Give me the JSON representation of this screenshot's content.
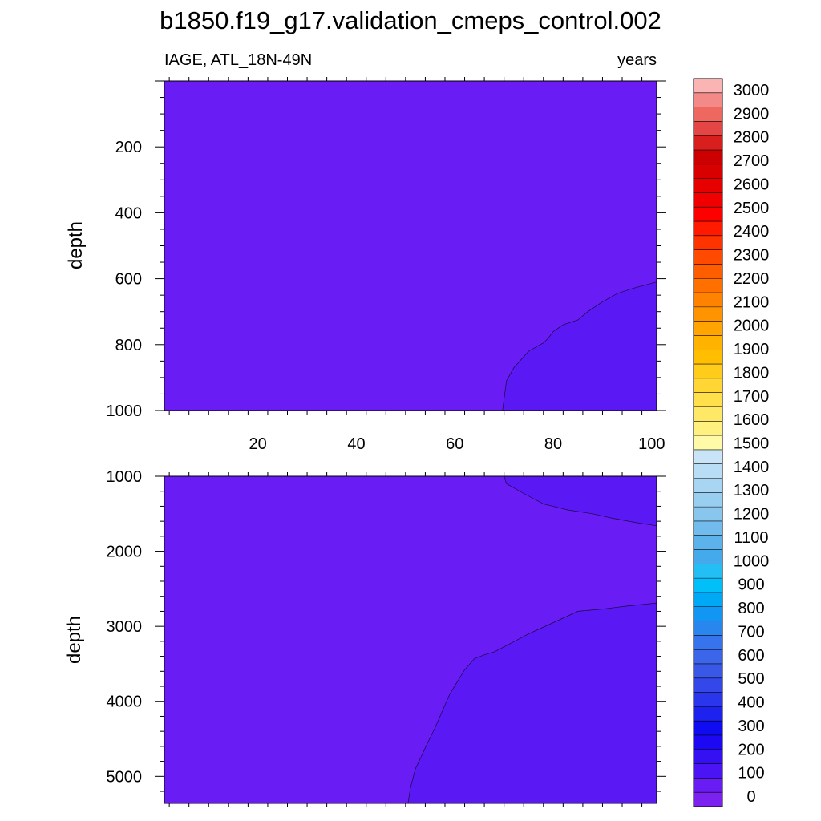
{
  "chart_data": {
    "type": "heatmap",
    "title": "b1850.f19_g17.validation_cmeps_control.002",
    "variable_label": "IAGE, ATL_18N-49N",
    "units_label": "years",
    "panels": [
      {
        "name": "upper",
        "ylabel": "depth",
        "xlim": [
          1,
          101
        ],
        "ylim": [
          0,
          1000
        ],
        "y_reversed": true,
        "x_ticks": [
          20,
          40,
          60,
          80,
          100
        ],
        "x_tick_labels": [
          "20",
          "40",
          "60",
          "80",
          "100"
        ],
        "y_ticks": [
          200,
          400,
          600,
          800,
          1000
        ],
        "y_tick_labels": [
          "200",
          "400",
          "600",
          "800",
          "1000"
        ],
        "background_color": "#6a1cf5",
        "regions": [
          {
            "color": "#5a18f5",
            "boundary": [
              [
                69.7,
                1000
              ],
              [
                70.5,
                910
              ],
              [
                72,
                870
              ],
              [
                75,
                820
              ],
              [
                78,
                795
              ],
              [
                79,
                780
              ],
              [
                80,
                760
              ],
              [
                82,
                740
              ],
              [
                85,
                725
              ],
              [
                87,
                700
              ],
              [
                90,
                670
              ],
              [
                93,
                645
              ],
              [
                96,
                630
              ],
              [
                101,
                610
              ]
            ]
          }
        ]
      },
      {
        "name": "lower",
        "ylabel": "depth",
        "xlim": [
          1,
          101
        ],
        "ylim": [
          1000,
          5360
        ],
        "y_reversed": true,
        "x_ticks": [
          20,
          40,
          60,
          80,
          100
        ],
        "x_tick_labels": [],
        "y_ticks": [
          1000,
          2000,
          3000,
          4000,
          5000
        ],
        "y_tick_labels": [
          "1000",
          "2000",
          "3000",
          "4000",
          "5000"
        ],
        "background_color": "#6a1cf5",
        "regions": [
          {
            "color": "#5a18f5",
            "boundary": [
              [
                70,
                1000
              ],
              [
                70.5,
                1100
              ],
              [
                74,
                1230
              ],
              [
                78,
                1370
              ],
              [
                83,
                1450
              ],
              [
                88,
                1500
              ],
              [
                92,
                1560
              ],
              [
                97,
                1620
              ],
              [
                101,
                1660
              ]
            ],
            "closes_to": "top-right"
          },
          {
            "color": "#5a18f5",
            "boundary": [
              [
                50.5,
                5360
              ],
              [
                51,
                5150
              ],
              [
                52,
                4900
              ],
              [
                54.5,
                4550
              ],
              [
                56,
                4350
              ],
              [
                59,
                3900
              ],
              [
                62,
                3580
              ],
              [
                64,
                3430
              ],
              [
                66,
                3380
              ],
              [
                68,
                3340
              ],
              [
                71,
                3240
              ],
              [
                75,
                3100
              ],
              [
                80,
                2950
              ],
              [
                85,
                2800
              ],
              [
                90,
                2770
              ],
              [
                95,
                2730
              ],
              [
                101,
                2690
              ]
            ],
            "closes_to": "bottom-right"
          }
        ]
      }
    ],
    "colorbar": {
      "labels": [
        "3000",
        "2900",
        "2800",
        "2700",
        "2600",
        "2500",
        "2400",
        "2300",
        "2200",
        "2100",
        "2000",
        "1900",
        "1800",
        "1700",
        "1600",
        "1500",
        "1400",
        "1300",
        "1200",
        "1100",
        "1000",
        "900",
        "800",
        "700",
        "600",
        "500",
        "400",
        "300",
        "200",
        "100",
        "0"
      ],
      "colors": [
        "#fbb4b4",
        "#f48a88",
        "#ee6860",
        "#e44646",
        "#d91e1e",
        "#cc0000",
        "#d80000",
        "#e60000",
        "#f00000",
        "#ff0000",
        "#ff1a00",
        "#ff3300",
        "#ff4a00",
        "#ff5e00",
        "#ff7000",
        "#ff8200",
        "#ff9400",
        "#ffa400",
        "#ffb200",
        "#ffbf00",
        "#ffcc1a",
        "#ffd633",
        "#ffe04a",
        "#ffe866",
        "#fff080",
        "#fffaa8",
        "#c8e4f6",
        "#b8ddf4",
        "#a8d6f2",
        "#98cef0",
        "#88c6ee",
        "#72bced",
        "#5cb3ec",
        "#45aaec",
        "#22bef4",
        "#00bff9",
        "#00a9f6",
        "#1296f3",
        "#2a86ef",
        "#3574ed",
        "#3b66ea",
        "#3a58e8",
        "#3447e8",
        "#2a36ec",
        "#1e22ef",
        "#0f0cf2",
        "#1c08f2",
        "#3410f2",
        "#4a14f4",
        "#6a1cf5",
        "#7c22f0"
      ]
    }
  }
}
